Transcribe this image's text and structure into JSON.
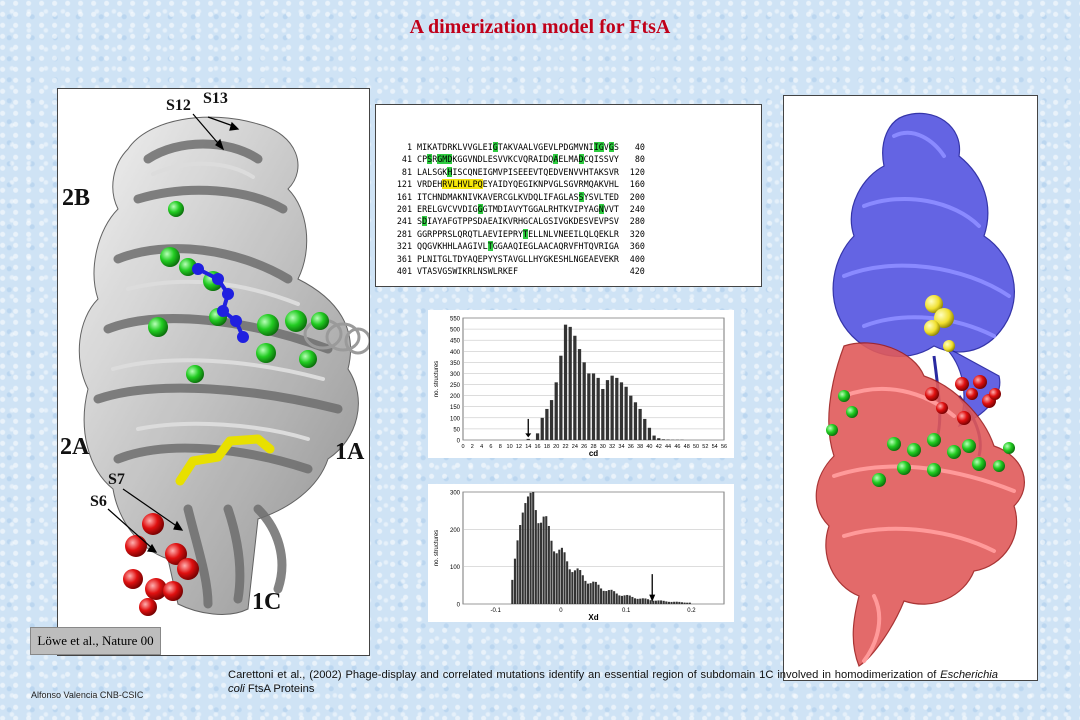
{
  "title": "A dimerization model for FtsA",
  "labels": {
    "s12": "S12",
    "s13": "S13",
    "l2b": "2B",
    "l2a": "2A",
    "l1a": "1A",
    "s7": "S7",
    "s6": "S6",
    "l1c": "1C"
  },
  "citation_box": "Löwe et al., Nature 00",
  "citation_main_pre": "Carettoni et al., (2002) Phage-display and correlated mutations identify an essential region of subdomain 1C involved in homodimerization of ",
  "citation_main_italic": "Escherichia coli",
  "citation_main_post": " FtsA Proteins",
  "author": "Alfonso Valencia CNB-CSIC",
  "sequence": [
    {
      "start": "1",
      "seq": "MIKATDRKLVVGLEIGTAKVAALVGEVLPDGMVNIIGVGS",
      "end": "40"
    },
    {
      "start": "41",
      "seq": "CPSRGMDKGGVNDLESVVKCVQRAIDQAELMADCQISSVY",
      "end": "80"
    },
    {
      "start": "81",
      "seq": "LALSGKHISCQNEIGMVPISEEEVTQEDVENVVHTAKSVR",
      "end": "120"
    },
    {
      "start": "121",
      "seq": "VRDEHRVLHVLPQEYAIDYQEGIKNPVGLSGVRMQAKVHL",
      "end": "160"
    },
    {
      "start": "161",
      "seq": "ITCHNDMAKNIVKAVERCGLKVDQLIFAGLASSYSVLTED",
      "end": "200"
    },
    {
      "start": "201",
      "seq": "ERELGVCVVDIGGGTMDIAVYTGGALRHTKVIPYAGNVVT",
      "end": "240"
    },
    {
      "start": "241",
      "seq": "SDIAYAFGTPPSDAEAIKVRHGCALGSIVGKDESVEVPSV",
      "end": "280"
    },
    {
      "start": "281",
      "seq": "GGRPPRSLQRQTLAEVIEPRYTELLNLVNEEILQLQEKLR",
      "end": "320"
    },
    {
      "start": "321",
      "seq": "QQGVKHHLAAGIVLTGGAAQIEGLAACAQRVFHTQVRIGA",
      "end": "360"
    },
    {
      "start": "361",
      "seq": "PLNITGLTDYAQEPYYSTAVGLLHYGKESHLNGEAEVEKR",
      "end": "400"
    },
    {
      "start": "401",
      "seq": "VTASVGSWIKRLNSWLRKEF",
      "end": "420"
    }
  ],
  "chart_data": [
    {
      "type": "bar",
      "ylabel": "no. structures",
      "xlabel": "cd",
      "ylim": [
        0,
        550
      ],
      "yticks": [
        "0",
        "50",
        "100",
        "150",
        "200",
        "250",
        "300",
        "350",
        "400",
        "450",
        "500",
        "550"
      ],
      "xticks": [
        "0",
        "2",
        "4",
        "6",
        "8",
        "10",
        "12",
        "14",
        "16",
        "18",
        "20",
        "22",
        "24",
        "26",
        "28",
        "30",
        "32",
        "34",
        "36",
        "38",
        "40",
        "42",
        "44",
        "46",
        "48",
        "50",
        "52",
        "54",
        "56"
      ],
      "x": [
        14,
        16,
        17,
        18,
        19,
        20,
        21,
        22,
        23,
        24,
        25,
        26,
        27,
        28,
        29,
        30,
        31,
        32,
        33,
        34,
        35,
        36,
        37,
        38,
        39,
        40,
        41,
        42,
        43,
        44,
        45,
        46,
        47
      ],
      "values": [
        5,
        30,
        100,
        140,
        180,
        260,
        380,
        520,
        510,
        470,
        410,
        350,
        300,
        300,
        280,
        230,
        270,
        290,
        280,
        260,
        240,
        200,
        170,
        140,
        95,
        55,
        20,
        8,
        3,
        2,
        1,
        1,
        1
      ]
    },
    {
      "type": "bar",
      "ylabel": "no. structures",
      "xlabel": "Xd",
      "ylim": [
        0,
        300
      ],
      "yticks": [
        "0",
        "100",
        "200",
        "300"
      ],
      "xticks": [
        "-0.1",
        "0",
        "0.1",
        "0.2"
      ],
      "note": "histogram"
    }
  ]
}
